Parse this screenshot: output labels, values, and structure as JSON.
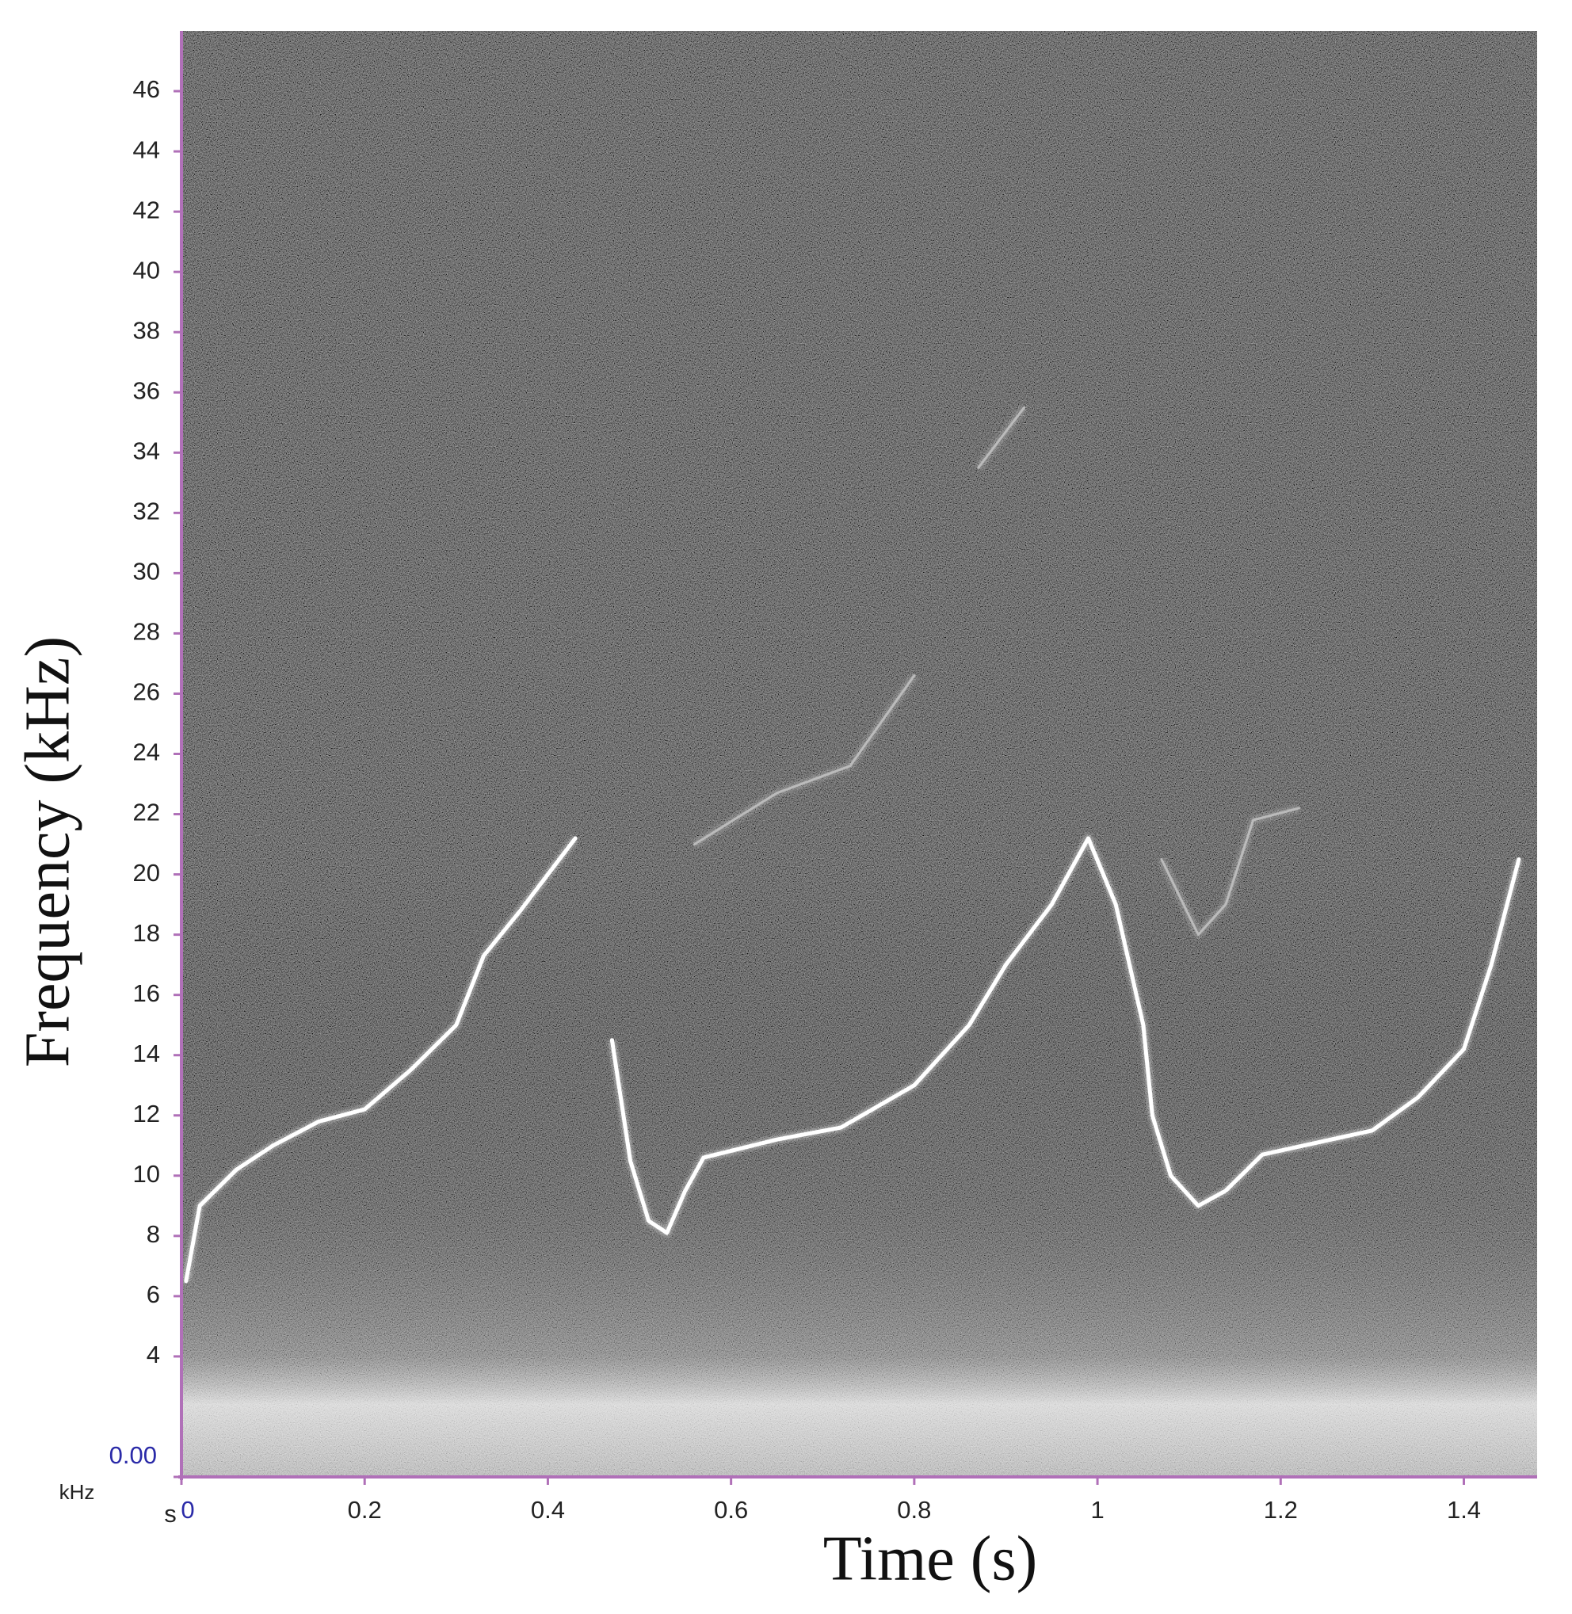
{
  "chart_data": {
    "type": "spectrogram",
    "x_label": "Time (s)",
    "y_label": "Frequency (kHz)",
    "x_unit_label": "s",
    "y_unit_label": "kHz",
    "xlim": [
      0,
      1.48
    ],
    "ylim": [
      0,
      48
    ],
    "xticks": [
      0,
      0.2,
      0.4,
      0.6,
      0.8,
      1,
      1.2,
      1.4
    ],
    "yticks": [
      {
        "value": 0,
        "label": "0.00"
      },
      4,
      6,
      8,
      10,
      12,
      14,
      16,
      18,
      20,
      22,
      24,
      26,
      28,
      30,
      32,
      34,
      36,
      38,
      40,
      42,
      44,
      46
    ],
    "grid": false,
    "series": [
      {
        "color": "#ffffff",
        "x": [
          0.005,
          0.02,
          0.06,
          0.1,
          0.15,
          0.2,
          0.25,
          0.3,
          0.33,
          0.37,
          0.4,
          0.43,
          null,
          0.47,
          0.49,
          0.51,
          0.53,
          0.55,
          0.57,
          0.65,
          0.72,
          0.8,
          0.86,
          0.9,
          0.95,
          0.99,
          1.02,
          1.05,
          1.06,
          1.08,
          1.11,
          1.14,
          1.18,
          1.24,
          1.3,
          1.35,
          1.4,
          1.43,
          1.46
        ],
        "values": [
          6.5,
          9,
          10.2,
          11,
          11.8,
          12.2,
          13.5,
          15,
          17.3,
          18.8,
          20,
          21.2,
          null,
          14.5,
          10.5,
          8.5,
          8.1,
          9.5,
          10.6,
          11.2,
          11.6,
          13,
          15,
          17,
          19,
          21.2,
          19,
          15,
          12,
          10,
          9,
          9.5,
          10.7,
          11.1,
          11.5,
          12.6,
          14.2,
          17,
          20.5
        ]
      },
      {
        "color": "#bbbbbb",
        "x": [
          0.56,
          0.65,
          0.73,
          0.8,
          null,
          1.07,
          1.11,
          1.14,
          1.17,
          1.22,
          null,
          0.87,
          0.92
        ],
        "values": [
          21,
          22.7,
          23.6,
          26.6,
          null,
          20.5,
          18,
          19,
          21.8,
          22.2,
          null,
          33.5,
          35.5
        ]
      }
    ]
  }
}
